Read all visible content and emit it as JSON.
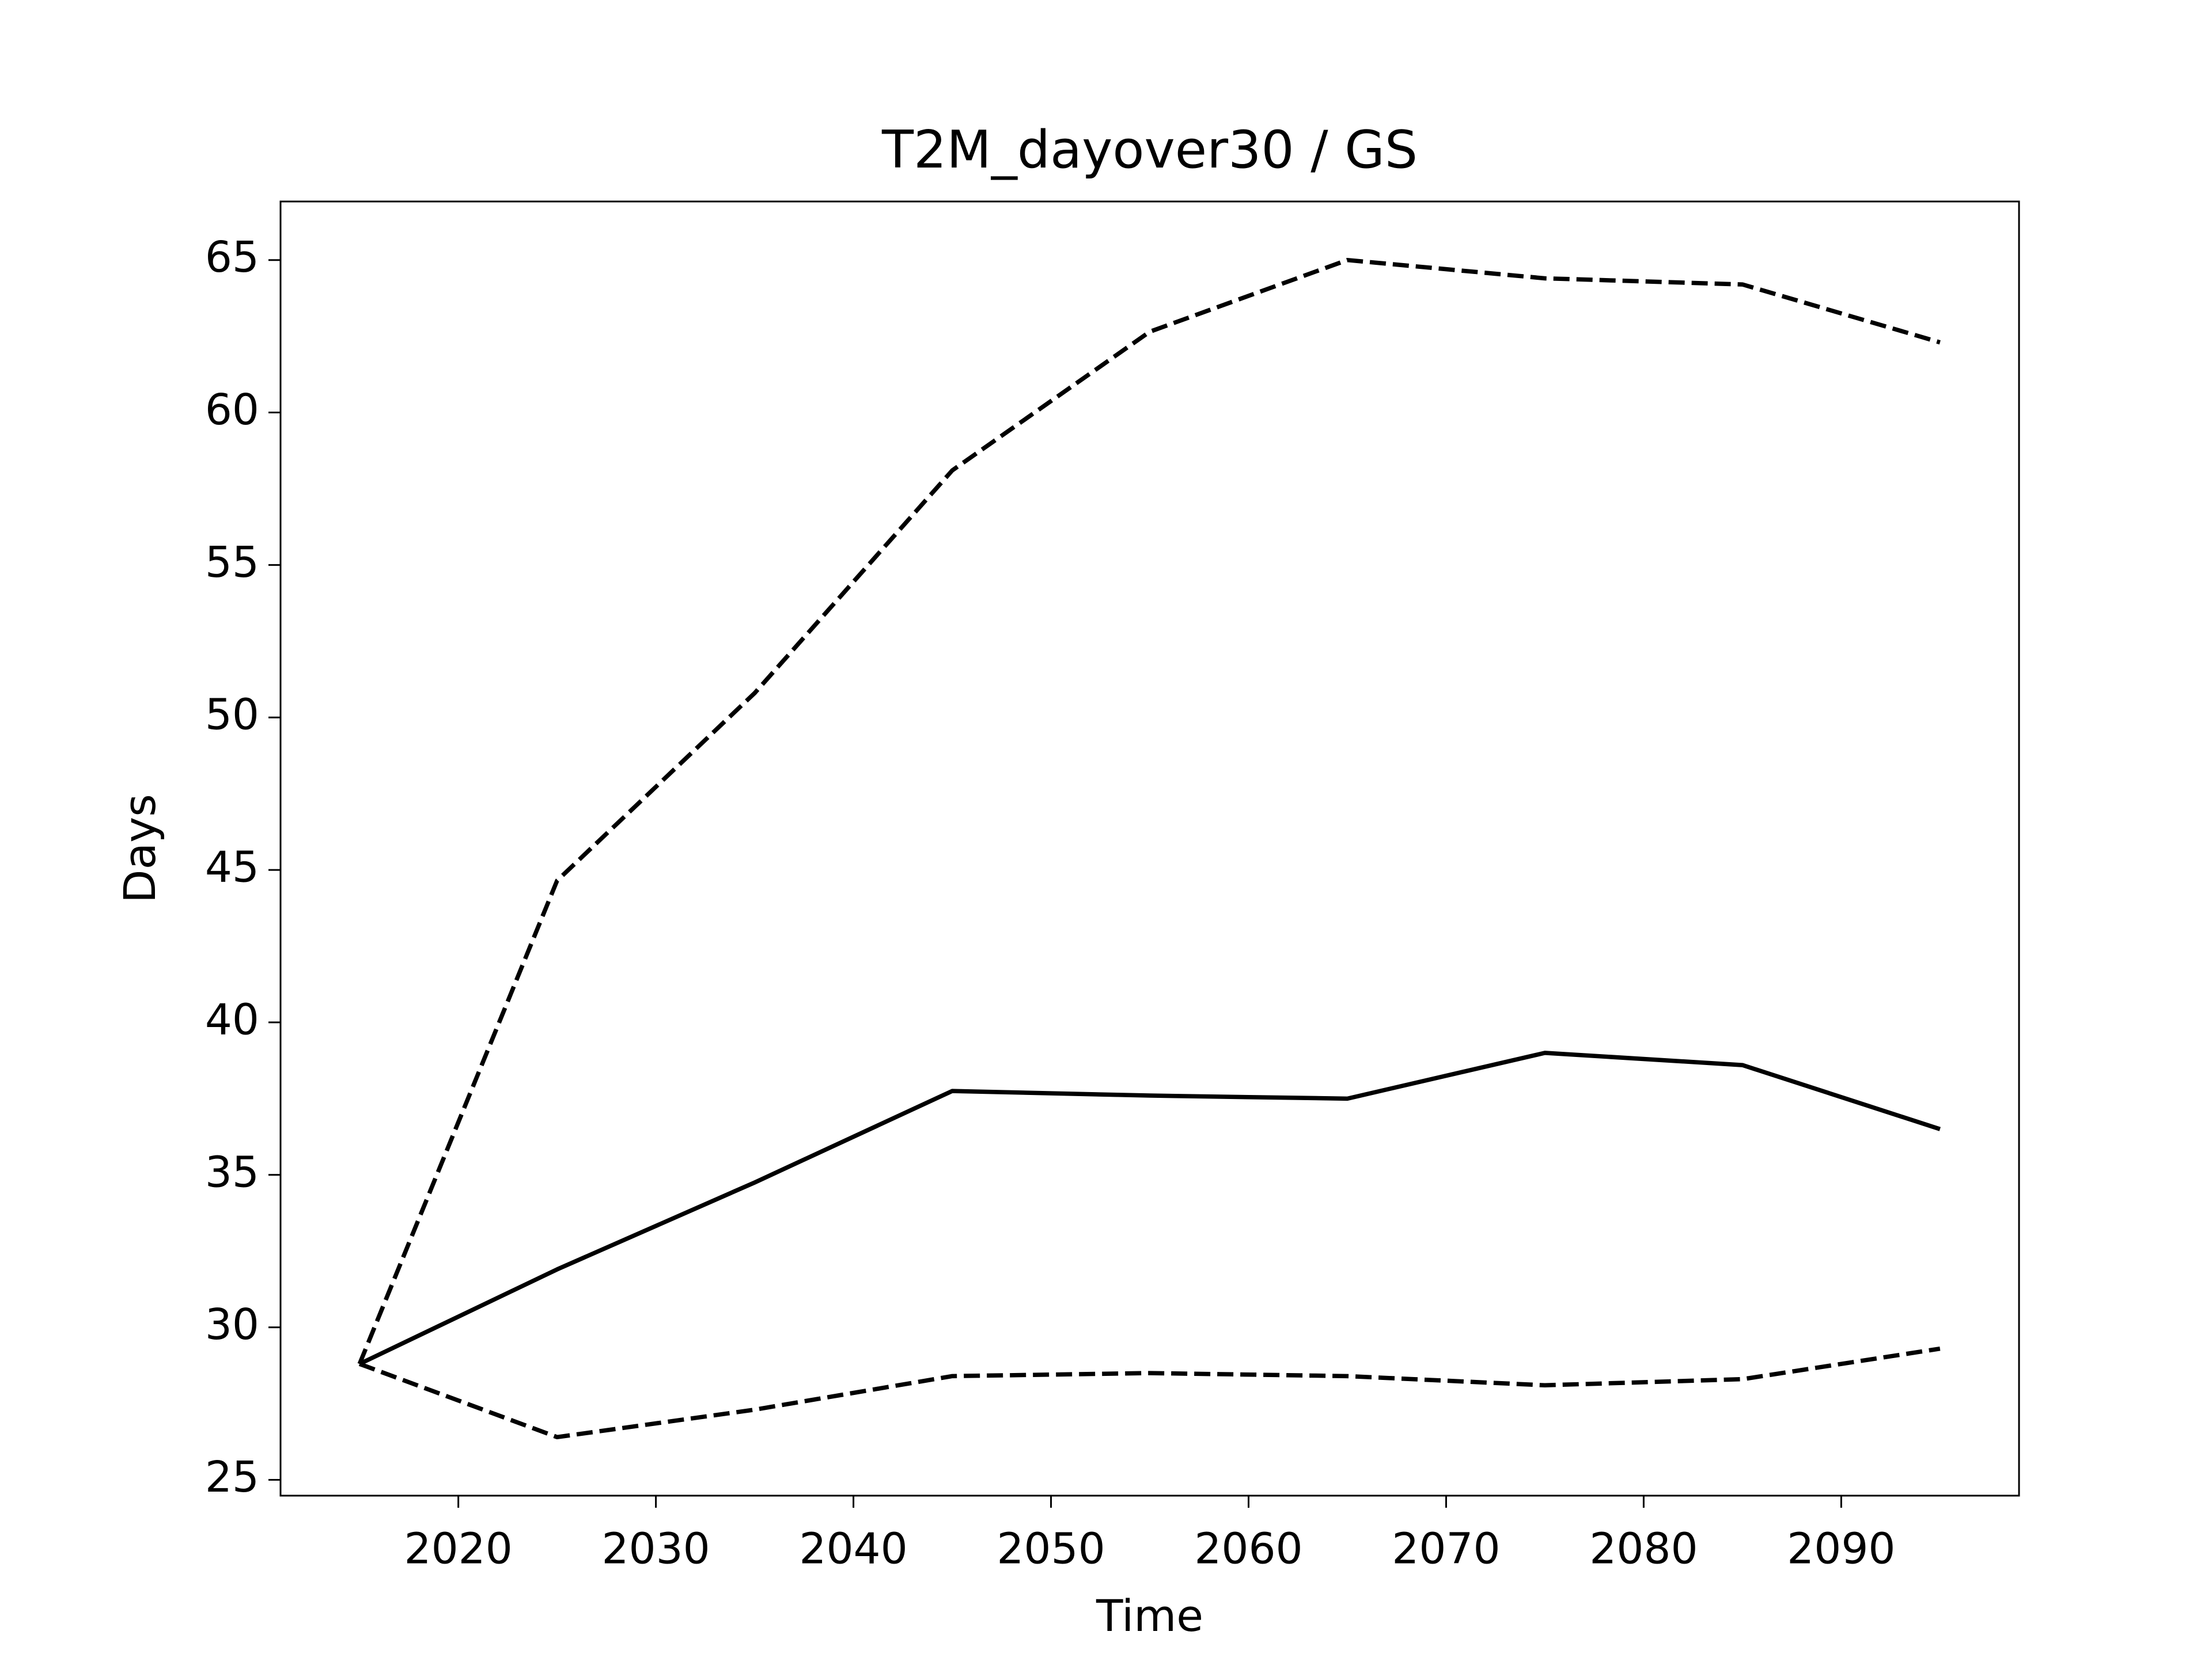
{
  "chart_data": {
    "type": "line",
    "title": "T2M_dayover30 / GS",
    "xlabel": "Time",
    "ylabel": "Days",
    "x": [
      2015,
      2025,
      2035,
      2045,
      2055,
      2065,
      2075,
      2085,
      2095
    ],
    "series": [
      {
        "color": "#000000",
        "dash": "solid",
        "values": [
          28.8,
          31.9,
          34.75,
          37.75,
          37.6,
          37.5,
          39.0,
          38.6,
          36.5
        ]
      },
      {
        "color": "#000000",
        "dash": "dashed",
        "values": [
          28.8,
          44.65,
          50.8,
          58.1,
          62.65,
          65.0,
          64.4,
          64.2,
          62.3
        ]
      },
      {
        "color": "#000000",
        "dash": "dashed",
        "values": [
          28.8,
          26.4,
          27.3,
          28.4,
          28.5,
          28.4,
          28.1,
          28.3,
          29.3
        ]
      }
    ],
    "xlim": [
      2011,
      2099
    ],
    "ylim": [
      24.48,
      66.92
    ],
    "xticks": [
      2020,
      2030,
      2040,
      2050,
      2060,
      2070,
      2080,
      2090
    ],
    "yticks": [
      25,
      30,
      35,
      40,
      45,
      50,
      55,
      60,
      65
    ],
    "grid": false
  }
}
